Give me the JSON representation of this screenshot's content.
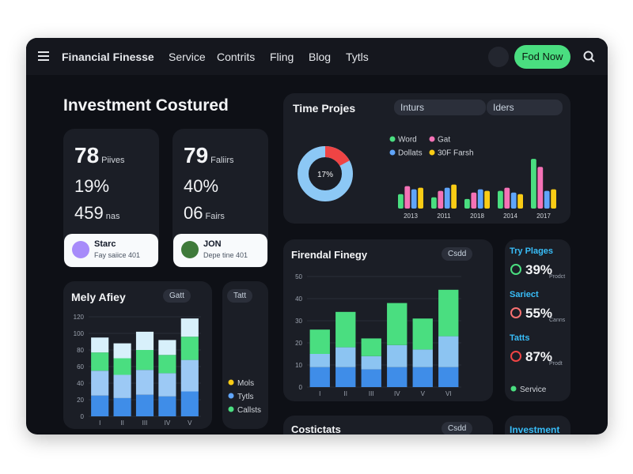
{
  "nav": {
    "brand": "Financial Finesse",
    "links": [
      "Service",
      "Contrits",
      "Fling",
      "Blog",
      "Tytls"
    ],
    "button": "Fod Now"
  },
  "heading": "Investment Costured",
  "stats": [
    {
      "lines": [
        {
          "value": "78",
          "unit": "Piives"
        },
        {
          "value": "19%"
        },
        {
          "value": "459",
          "unit": "nas"
        }
      ],
      "chip": {
        "title": "Starc",
        "subtitle": "Fay saiice 401"
      }
    },
    {
      "lines": [
        {
          "value": "79",
          "unit": "Faliirs"
        },
        {
          "value": "40%"
        },
        {
          "value": "06",
          "unit": "Fairs"
        }
      ],
      "chip": {
        "title": "JON",
        "subtitle": "Depe tine 401"
      }
    }
  ],
  "time_projects": {
    "title": "Time Projes",
    "filters": [
      "Inturs",
      "Iders"
    ],
    "donut": {
      "value": 17,
      "label": "17%"
    },
    "chart": {
      "type": "bar",
      "categories": [
        "2013",
        "2011",
        "2018",
        "2014",
        "2017"
      ],
      "ylim": [
        0,
        70
      ],
      "series": [
        {
          "name": "Word",
          "color": "#4ade80",
          "values": [
            18,
            14,
            12,
            22,
            62
          ]
        },
        {
          "name": "Gat",
          "color": "#f472b6",
          "values": [
            28,
            22,
            20,
            26,
            52
          ]
        },
        {
          "name": "Dollats",
          "color": "#60a5fa",
          "values": [
            24,
            26,
            24,
            20,
            22
          ]
        },
        {
          "name": "30F Farsh",
          "color": "#facc15",
          "values": [
            26,
            30,
            22,
            18,
            24
          ]
        }
      ]
    }
  },
  "mely": {
    "title": "Mely Afiey",
    "chip": "Gatt",
    "chart": {
      "type": "stacked_bar",
      "categories": [
        "I",
        "II",
        "III",
        "IV",
        "V"
      ],
      "ylim": [
        0,
        120
      ],
      "yticks": [
        0,
        20,
        40,
        60,
        80,
        100,
        120
      ],
      "series": [
        {
          "color": "#3f8de8",
          "values": [
            25,
            22,
            26,
            24,
            30
          ]
        },
        {
          "color": "#9cc9f5",
          "values": [
            30,
            28,
            30,
            28,
            38
          ]
        },
        {
          "color": "#4ade80",
          "values": [
            22,
            20,
            24,
            22,
            28
          ]
        },
        {
          "color": "#d8f0fb",
          "values": [
            18,
            18,
            22,
            18,
            22
          ]
        }
      ]
    }
  },
  "tatt": {
    "chip": "Tatt",
    "legend": [
      {
        "name": "Mols",
        "color": "#facc15"
      },
      {
        "name": "Tytls",
        "color": "#60a5fa"
      },
      {
        "name": "Callsts",
        "color": "#4ade80"
      }
    ]
  },
  "finegy": {
    "title": "Firendal Finegy",
    "chip": "Csdd",
    "chart": {
      "type": "stacked_bar",
      "categories": [
        "I",
        "II",
        "III",
        "IV",
        "V",
        "VI"
      ],
      "ylim": [
        0,
        50
      ],
      "yticks": [
        0,
        10,
        20,
        30,
        40,
        50
      ],
      "series": [
        {
          "color": "#3f8de8",
          "values": [
            9,
            9,
            8,
            9,
            9,
            9
          ]
        },
        {
          "color": "#8cc4f2",
          "values": [
            6,
            9,
            6,
            10,
            8,
            14
          ]
        },
        {
          "color": "#4ade80",
          "values": [
            11,
            16,
            8,
            19,
            14,
            21
          ]
        }
      ]
    }
  },
  "side": {
    "items": [
      {
        "title": "Try Plages",
        "value": "39%",
        "note": "Prodct"
      },
      {
        "title": "Sariect",
        "value": "55%",
        "note": "Canns"
      },
      {
        "title": "Tatts",
        "value": "87%",
        "note": "Prodt"
      }
    ],
    "footer": "Service"
  },
  "bottom": {
    "title": "Costictats",
    "chip": "Csdd",
    "side_title": "Investment"
  }
}
